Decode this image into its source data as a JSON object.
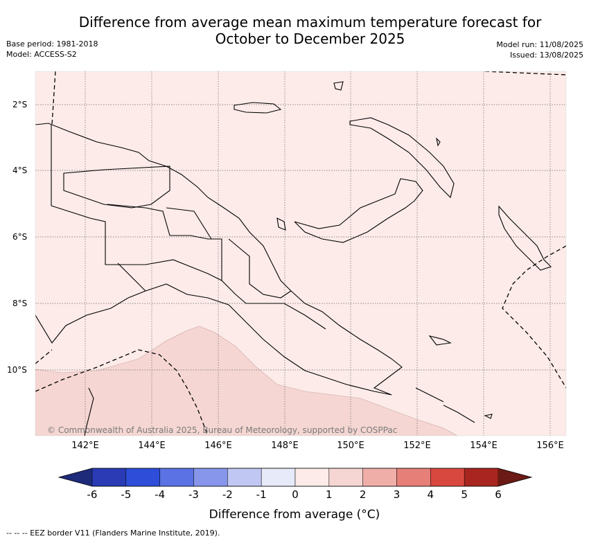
{
  "header": {
    "title_line1": "Difference from average mean maximum temperature forecast for",
    "title_line2": "October to December 2025",
    "base_period": "Base period: 1981-2018",
    "model": "Model: ACCESS-S2",
    "model_run": "Model run: 11/08/2025",
    "issued": "Issued: 13/08/2025"
  },
  "map": {
    "region": "Papua New Guinea",
    "lat_labels": [
      "2°S",
      "4°S",
      "6°S",
      "8°S",
      "10°S"
    ],
    "lon_labels": [
      "142°E",
      "144°E",
      "146°E",
      "148°E",
      "150°E",
      "152°E",
      "154°E",
      "156°E"
    ],
    "copyright": "© Commonwealth of Australia 2025, Bureau of Meteorology, supported by COSPPac",
    "colors": {
      "anomaly_0_to_1": "#fcebe9",
      "anomaly_1_to_2": "#f5d6d2",
      "coastline": "#000000"
    }
  },
  "colorbar": {
    "ticks": [
      "-6",
      "-5",
      "-4",
      "-3",
      "-2",
      "-1",
      "0",
      "1",
      "2",
      "3",
      "4",
      "5",
      "6"
    ],
    "label": "Difference from average (°C)",
    "colors": [
      "#1e2a7a",
      "#2a3bb5",
      "#2e4ed9",
      "#5a72e3",
      "#8796ea",
      "#c0c7f2",
      "#e7eaf9",
      "#fcebe9",
      "#f5d6d2",
      "#f0aea8",
      "#e57f78",
      "#d9483e",
      "#a8261f",
      "#6b1a15"
    ]
  },
  "footnote": "-- -- -- EEZ border V11 (Flanders Marine Institute, 2019)."
}
